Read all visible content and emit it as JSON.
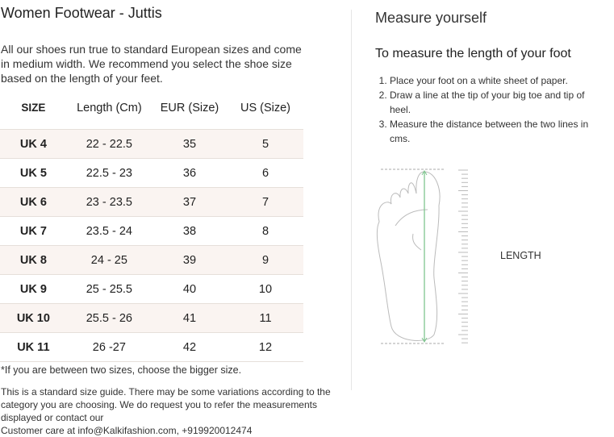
{
  "title": "Women Footwear - Juttis",
  "intro": "All our shoes run true to standard European sizes and come in medium width. We recommend you select the shoe size based on the length of your feet.",
  "table": {
    "headers": [
      "SIZE",
      "Length (Cm)",
      "EUR (Size)",
      "US (Size)"
    ],
    "rows": [
      [
        "UK 4",
        "22 - 22.5",
        "35",
        "5"
      ],
      [
        "UK 5",
        "22.5 - 23",
        "36",
        "6"
      ],
      [
        "UK 6",
        "23 - 23.5",
        "37",
        "7"
      ],
      [
        "UK 7",
        "23.5 - 24",
        "38",
        "8"
      ],
      [
        "UK 8",
        "24 - 25",
        "39",
        "9"
      ],
      [
        "UK 9",
        "25 - 25.5",
        "40",
        "10"
      ],
      [
        "UK 10",
        "25.5 - 26",
        "41",
        "11"
      ],
      [
        "UK 11",
        "26 -27",
        "42",
        "12"
      ]
    ]
  },
  "note": "*If you are between two sizes, choose the bigger size.",
  "disclaimer": "This is a standard size guide. There may be some variations according to the category you are choosing. We do request you to refer the measurements displayed or contact our",
  "contact": "Customer care at info@Kalkifashion.com, +919920012474",
  "measure": {
    "title": "Measure yourself",
    "subtitle": "To measure the length of your foot",
    "steps": [
      "Place your foot on a white sheet of paper.",
      "Draw a line at the tip of your big toe and tip of heel.",
      "Measure the distance between the two lines in cms."
    ],
    "length_label": "LENGTH"
  },
  "colors": {
    "row_shade": "#faf4f1",
    "arrow": "#7fc58f"
  }
}
